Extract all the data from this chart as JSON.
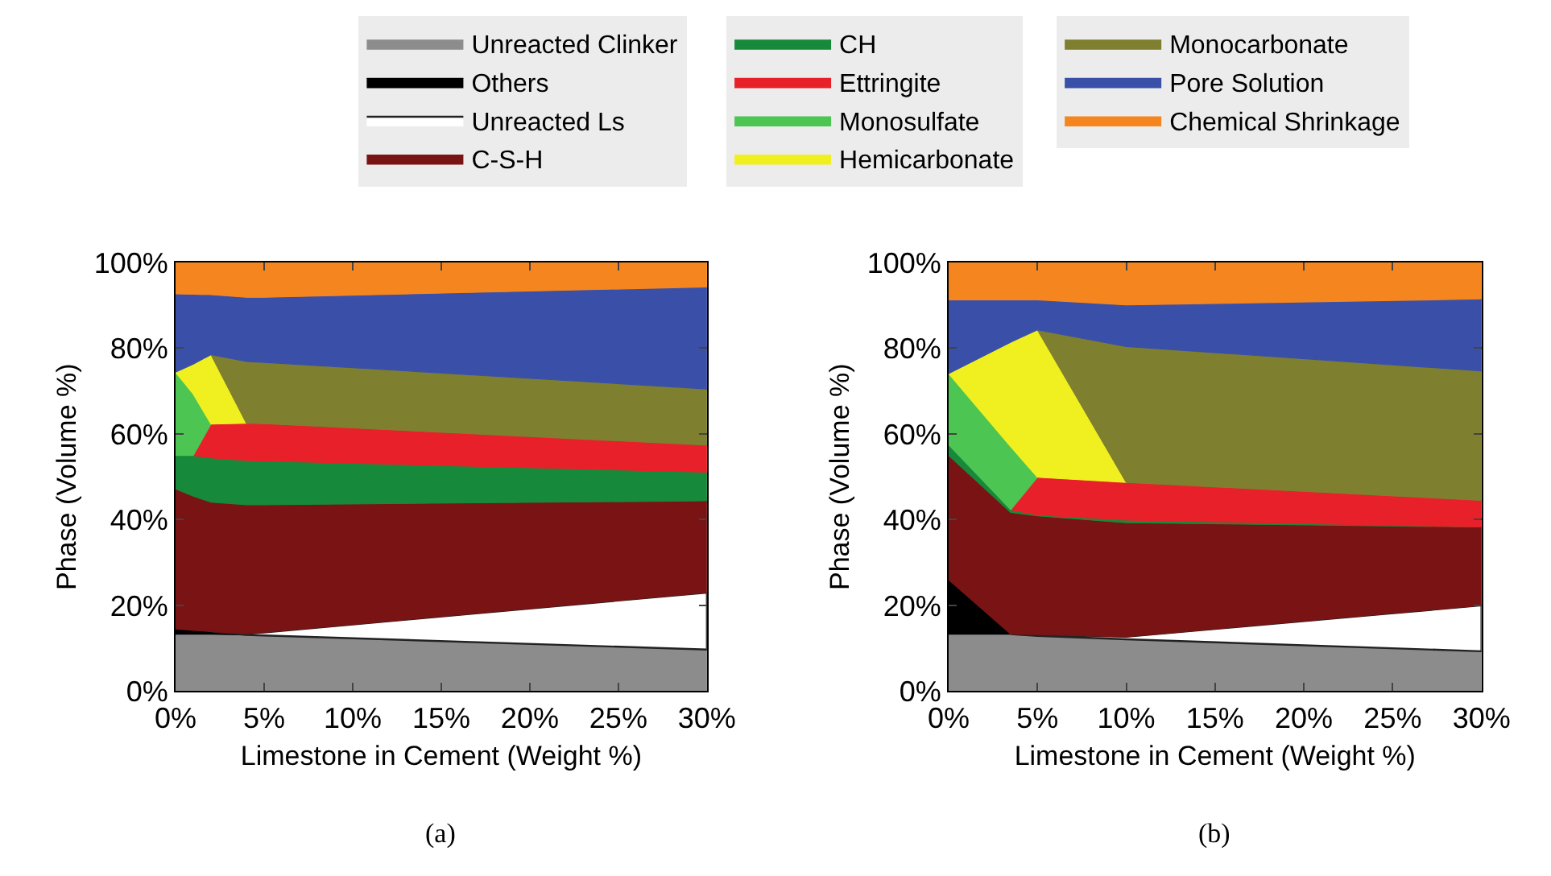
{
  "chart_data": [
    {
      "type": "area",
      "stacked": true,
      "xlabel": "Limestone in Cement (Weight %)",
      "ylabel": "Phase (Volume %)",
      "annotations": [
        "(a)"
      ],
      "legend": "top",
      "x": [
        0,
        1,
        2,
        4,
        5,
        30
      ],
      "xlim": [
        0,
        30
      ],
      "xticks": [
        {
          "value": 0,
          "label": "0%"
        },
        {
          "value": 5,
          "label": "5%"
        },
        {
          "value": 10,
          "label": "10%"
        },
        {
          "value": 15,
          "label": "15%"
        },
        {
          "value": 20,
          "label": "20%"
        },
        {
          "value": 25,
          "label": "25%"
        },
        {
          "value": 30,
          "label": "30%"
        }
      ],
      "ylim": [
        0,
        100
      ],
      "yticks": [
        {
          "value": 0,
          "label": "0%"
        },
        {
          "value": 20,
          "label": "20%"
        },
        {
          "value": 40,
          "label": "40%"
        },
        {
          "value": 60,
          "label": "60%"
        },
        {
          "value": 80,
          "label": "80%"
        },
        {
          "value": 100,
          "label": "100%"
        }
      ],
      "series": [
        {
          "name": "Unreacted Clinker",
          "color": "#8c8c8c",
          "values": [
            13.3,
            13.3,
            13.3,
            13.1,
            13.0,
            9.7
          ]
        },
        {
          "name": "Others",
          "color": "#000000",
          "values": [
            1.2,
            0.9,
            0.6,
            0,
            null,
            null
          ]
        },
        {
          "name": "Unreacted Ls",
          "color": "#ffffff",
          "values": [
            null,
            null,
            0,
            0.3,
            0.7,
            13.3
          ]
        },
        {
          "name": "C-S-H",
          "color": "#7a1414",
          "values": [
            32.7,
            31.3,
            30.2,
            30.1,
            29.8,
            21.4
          ]
        },
        {
          "name": "CH",
          "color": "#17893a",
          "values": [
            7.8,
            9.5,
            10.3,
            10.3,
            10.2,
            6.7
          ]
        },
        {
          "name": "Ettringite",
          "color": "#e8202a",
          "values": [
            null,
            0,
            7.9,
            8.7,
            8.7,
            6.3
          ]
        },
        {
          "name": "Monosulfate",
          "color": "#4cc552",
          "values": [
            19.4,
            14.3,
            0,
            null,
            null,
            null
          ]
        },
        {
          "name": "Hemicarbonate",
          "color": "#f0f020",
          "values": [
            0,
            7.0,
            16.2,
            0,
            null,
            null
          ]
        },
        {
          "name": "Monocarbonate",
          "color": "#7f7f30",
          "values": [
            null,
            null,
            0,
            14.4,
            14.3,
            13.1
          ]
        },
        {
          "name": "Pore Solution",
          "color": "#3a50a8",
          "values": [
            18.3,
            16.3,
            14.0,
            15.0,
            15.2,
            23.8
          ]
        },
        {
          "name": "Chemical Shrinkage",
          "color": "#f5861f",
          "values": [
            7.3,
            7.4,
            7.5,
            8.1,
            8.1,
            5.7
          ]
        }
      ]
    },
    {
      "type": "area",
      "stacked": true,
      "xlabel": "Limestone in Cement (Weight %)",
      "ylabel": "Phase (Volume %)",
      "annotations": [
        "(b)"
      ],
      "legend": "top",
      "x": [
        0,
        3.5,
        5,
        10,
        30
      ],
      "xlim": [
        0,
        30
      ],
      "xticks": [
        {
          "value": 0,
          "label": "0%"
        },
        {
          "value": 5,
          "label": "5%"
        },
        {
          "value": 10,
          "label": "10%"
        },
        {
          "value": 15,
          "label": "15%"
        },
        {
          "value": 20,
          "label": "20%"
        },
        {
          "value": 25,
          "label": "25%"
        },
        {
          "value": 30,
          "label": "30%"
        }
      ],
      "ylim": [
        0,
        100
      ],
      "yticks": [
        {
          "value": 0,
          "label": "0%"
        },
        {
          "value": 20,
          "label": "20%"
        },
        {
          "value": 40,
          "label": "40%"
        },
        {
          "value": 60,
          "label": "60%"
        },
        {
          "value": 80,
          "label": "80%"
        },
        {
          "value": 100,
          "label": "100%"
        }
      ],
      "series": [
        {
          "name": "Unreacted Clinker",
          "color": "#8c8c8c",
          "values": [
            13.3,
            13.3,
            12.9,
            12.1,
            9.3
          ]
        },
        {
          "name": "Others",
          "color": "#000000",
          "values": [
            12.7,
            0,
            null,
            null,
            null
          ]
        },
        {
          "name": "Unreacted Ls",
          "color": "#ffffff",
          "values": [
            null,
            0,
            0.3,
            0.6,
            10.7
          ]
        },
        {
          "name": "C-S-H",
          "color": "#7a1414",
          "values": [
            29.0,
            28.4,
            27.7,
            26.6,
            18.3
          ]
        },
        {
          "name": "CH",
          "color": "#17893a",
          "values": [
            2.5,
            0.6,
            0.2,
            0.6,
            0
          ]
        },
        {
          "name": "Ettringite",
          "color": "#e8202a",
          "values": [
            null,
            0,
            8.8,
            8.8,
            6.2
          ]
        },
        {
          "name": "Monosulfate",
          "color": "#4cc552",
          "values": [
            16.6,
            14.7,
            0,
            null,
            null
          ]
        },
        {
          "name": "Hemicarbonate",
          "color": "#f0f020",
          "values": [
            0,
            24.4,
            34.4,
            0,
            null
          ]
        },
        {
          "name": "Monocarbonate",
          "color": "#7f7f30",
          "values": [
            null,
            null,
            0,
            31.7,
            30.2
          ]
        },
        {
          "name": "Pore Solution",
          "color": "#3a50a8",
          "values": [
            17.2,
            9.9,
            7.0,
            9.7,
            16.8
          ]
        },
        {
          "name": "Chemical Shrinkage",
          "color": "#f5861f",
          "values": [
            8.7,
            8.7,
            8.7,
            9.9,
            8.5
          ]
        }
      ]
    }
  ]
}
